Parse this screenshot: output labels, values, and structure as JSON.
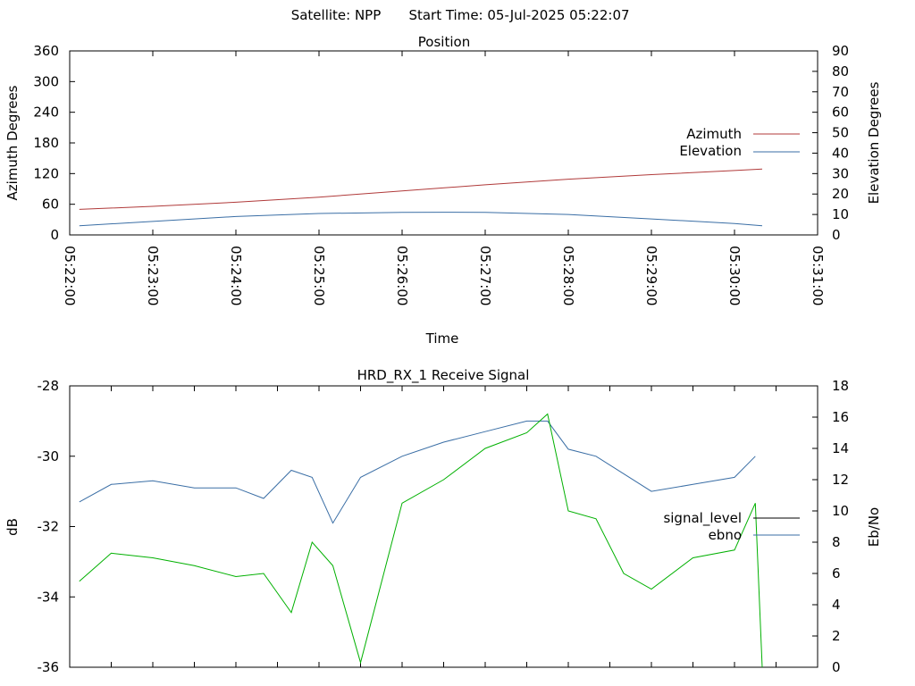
{
  "header": {
    "satellite_label": "Satellite: NPP",
    "start_label": "Start Time: 05-Jul-2025 05:22:07"
  },
  "colors": {
    "azimuth": "#b03a3a",
    "elevation": "#3a6ea5",
    "signal_level": "#000000",
    "ebno": "#3a6ea5",
    "signal_trace": "#00b000",
    "ebno_trace": "#3a6ea5",
    "axes": "#000000"
  },
  "chart_data": [
    {
      "type": "line",
      "title": "Position",
      "xlabel": "Time",
      "ylabel": "Azimuth Degrees",
      "y2label": "Elevation Degrees",
      "x_ticks": [
        "05:22:00",
        "05:23:00",
        "05:24:00",
        "05:25:00",
        "05:26:00",
        "05:27:00",
        "05:28:00",
        "05:29:00",
        "05:30:00",
        "05:31:00"
      ],
      "xlim": [
        "05:22:00",
        "05:31:00"
      ],
      "ylim": [
        0,
        360
      ],
      "y_ticks": [
        0,
        60,
        120,
        180,
        240,
        300,
        360
      ],
      "y2lim": [
        0,
        90
      ],
      "y2_ticks": [
        0,
        10,
        20,
        30,
        40,
        50,
        60,
        70,
        80,
        90
      ],
      "legend_position": "right",
      "series": [
        {
          "name": "Azimuth",
          "axis": "y",
          "color": "#b03a3a",
          "x": [
            "05:22:07",
            "05:23:00",
            "05:24:00",
            "05:25:00",
            "05:26:00",
            "05:27:00",
            "05:28:00",
            "05:29:00",
            "05:30:00",
            "05:30:20"
          ],
          "y": [
            50,
            56,
            64,
            74,
            86,
            98,
            109,
            118,
            126,
            129
          ]
        },
        {
          "name": "Elevation",
          "axis": "y2",
          "color": "#3a6ea5",
          "x": [
            "05:22:07",
            "05:23:00",
            "05:24:00",
            "05:25:00",
            "05:26:00",
            "05:26:30",
            "05:27:00",
            "05:28:00",
            "05:29:00",
            "05:30:00",
            "05:30:20"
          ],
          "y": [
            4.5,
            6.6,
            9.0,
            10.5,
            11.0,
            11.1,
            11.0,
            10.0,
            7.8,
            5.6,
            4.5
          ]
        }
      ]
    },
    {
      "type": "line",
      "title": "HRD_RX_1 Receive Signal",
      "ylabel": "dB",
      "y2label": "Eb/No",
      "ylim": [
        -36,
        -28
      ],
      "y_ticks": [
        -36,
        -34,
        -32,
        -30,
        -28
      ],
      "y2lim": [
        0,
        18
      ],
      "y2_ticks": [
        0,
        2,
        4,
        6,
        8,
        10,
        12,
        14,
        16,
        18
      ],
      "xlim": [
        "05:22:00",
        "05:31:00"
      ],
      "legend_position": "right",
      "series": [
        {
          "name": "signal_level",
          "axis": "y",
          "color": "#000000",
          "x": [
            "05:22:07",
            "05:22:30",
            "05:23:00",
            "05:23:30",
            "05:24:00",
            "05:24:20",
            "05:24:40",
            "05:24:55",
            "05:25:10",
            "05:25:30",
            "05:26:00",
            "05:26:30",
            "05:27:00",
            "05:27:30",
            "05:27:45",
            "05:28:00",
            "05:28:20",
            "05:28:40",
            "05:29:00",
            "05:29:30",
            "05:30:00",
            "05:30:15"
          ],
          "y": [
            -31.3,
            -30.8,
            -30.7,
            -30.9,
            -30.9,
            -31.2,
            -30.4,
            -30.6,
            -31.9,
            -30.6,
            -30.0,
            -29.6,
            -29.3,
            -29.0,
            -29.0,
            -29.8,
            -30.0,
            -30.5,
            -31.0,
            -30.8,
            -30.6,
            -30.0
          ]
        },
        {
          "name": "ebno",
          "axis": "y2",
          "color": "#3a6ea5",
          "x": [
            "05:22:07",
            "05:22:30",
            "05:23:00",
            "05:23:30",
            "05:24:00",
            "05:24:20",
            "05:24:40",
            "05:24:55",
            "05:25:10",
            "05:25:30",
            "05:26:00",
            "05:26:30",
            "05:27:00",
            "05:27:30",
            "05:27:45",
            "05:28:00",
            "05:28:20",
            "05:28:40",
            "05:29:00",
            "05:29:30",
            "05:30:00",
            "05:30:15",
            "05:30:20"
          ],
          "y": [
            5.5,
            7.3,
            7.0,
            6.5,
            5.8,
            6.0,
            3.5,
            8.0,
            6.5,
            0.3,
            10.5,
            12.0,
            14.0,
            15.0,
            16.2,
            10.0,
            9.5,
            6.0,
            5.0,
            7.0,
            7.5,
            10.5,
            0.0
          ]
        }
      ]
    }
  ]
}
